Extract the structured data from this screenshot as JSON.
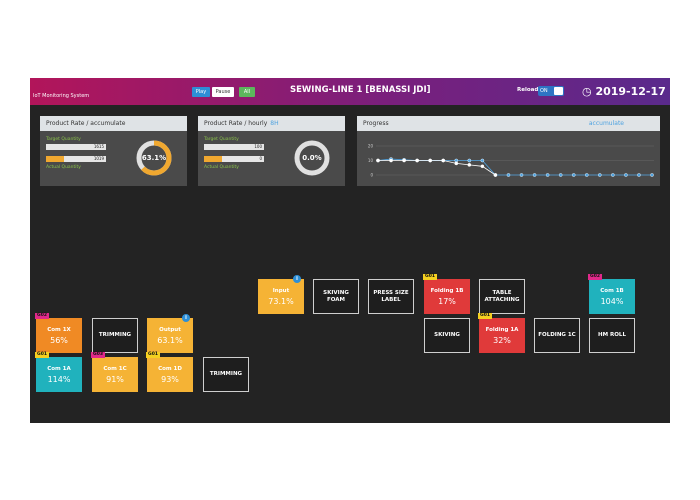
{
  "header": {
    "subtitle": "IoT Monitoring System",
    "buttons": [
      "Play",
      "Pause",
      "All"
    ],
    "title": "SEWING-LINE 1 [BENASSI JDI]",
    "reload": "Reload",
    "toggle": "ON",
    "date": "2019-12-17"
  },
  "panels": [
    {
      "title": "Product Rate / accumulate",
      "target_label": "Target Quantity",
      "target_value": "1615",
      "actual_label": "Actual Quantity",
      "actual_value": "1019",
      "gauge": {
        "value": 63.1,
        "label": "63.1%"
      }
    },
    {
      "title": "Product Rate / hourly",
      "title_suffix": "8H",
      "target_label": "Target Quantity",
      "target_value": "100",
      "actual_label": "Actual Quantity",
      "actual_value": "0",
      "gauge": {
        "value": 0,
        "label": "0.0%"
      }
    }
  ],
  "progress": {
    "title": "Progress",
    "link": "accumulate",
    "ylim": [
      0,
      20
    ],
    "yticks": [
      0,
      10,
      20
    ],
    "series": [
      {
        "color": "#4fa3e0",
        "values": [
          10,
          11,
          10.5,
          10,
          10,
          10,
          10,
          10,
          10,
          0,
          0,
          0,
          0,
          0,
          0,
          0,
          0,
          0,
          0,
          0,
          0,
          0
        ]
      },
      {
        "color": "#ffffff",
        "values": [
          10,
          10,
          10,
          10,
          10,
          10,
          8,
          7,
          6,
          0,
          null,
          null,
          null,
          null,
          null,
          null,
          null,
          null,
          null,
          null,
          null,
          null
        ]
      }
    ]
  },
  "tiles": [
    {
      "label": "Input",
      "value": "73.1%",
      "info": "i"
    },
    {
      "label": "SKIVING FOAM"
    },
    {
      "label": "PRESS SIZE LABEL"
    },
    {
      "label": "Folding 1B",
      "value": "17%",
      "badge": "G01"
    },
    {
      "label": "TABLE ATTACHING"
    },
    {
      "label": "Com 1B",
      "value": "104%",
      "badge": "G02"
    },
    {
      "label": "SKIVING"
    },
    {
      "label": "Folding 1A",
      "value": "32%",
      "badge": "G01"
    },
    {
      "label": "FOLDING 1C"
    },
    {
      "label": "HM ROLL"
    },
    {
      "label": "Com 1X",
      "value": "56%",
      "badge": "G02"
    },
    {
      "label": "TRIMMING"
    },
    {
      "label": "Output",
      "value": "63.1%",
      "info": "i"
    },
    {
      "label": "Com 1A",
      "value": "114%",
      "badge": "G01"
    },
    {
      "label": "Com 1C",
      "value": "91%",
      "badge": "G03"
    },
    {
      "label": "Com 1D",
      "value": "93%",
      "badge": "G01"
    },
    {
      "label": "TRIMMING"
    }
  ]
}
